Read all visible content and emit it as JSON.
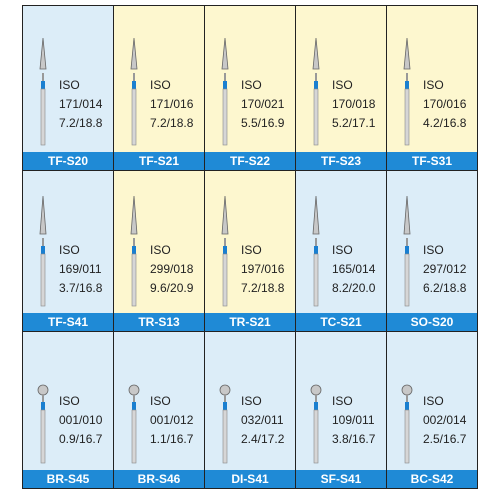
{
  "rows": [
    [
      {
        "label": "TF-S20",
        "iso": "ISO",
        "code": "171/014",
        "size": "7.2/18.8"
      },
      {
        "label": "TF-S21",
        "iso": "ISO",
        "code": "171/016",
        "size": "7.2/18.8"
      },
      {
        "label": "TF-S22",
        "iso": "ISO",
        "code": "170/021",
        "size": "5.5/16.9"
      },
      {
        "label": "TF-S23",
        "iso": "ISO",
        "code": "170/018",
        "size": "5.2/17.1"
      },
      {
        "label": "TF-S31",
        "iso": "ISO",
        "code": "170/016",
        "size": "4.2/16.8"
      }
    ],
    [
      {
        "label": "TF-S41",
        "iso": "ISO",
        "code": "169/011",
        "size": "3.7/16.8"
      },
      {
        "label": "TR-S13",
        "iso": "ISO",
        "code": "299/018",
        "size": "9.6/20.9"
      },
      {
        "label": "TR-S21",
        "iso": "ISO",
        "code": "197/016",
        "size": "7.2/18.8"
      },
      {
        "label": "TC-S21",
        "iso": "ISO",
        "code": "165/014",
        "size": "8.2/20.0"
      },
      {
        "label": "SO-S20",
        "iso": "ISO",
        "code": "297/012",
        "size": "6.2/18.8"
      }
    ],
    [
      {
        "label": "BR-S45",
        "iso": "ISO",
        "code": "001/010",
        "size": "0.9/16.7"
      },
      {
        "label": "BR-S46",
        "iso": "ISO",
        "code": "001/012",
        "size": "1.1/16.7"
      },
      {
        "label": "DI-S41",
        "iso": "ISO",
        "code": "032/011",
        "size": "2.4/17.2"
      },
      {
        "label": "SF-S41",
        "iso": "ISO",
        "code": "109/011",
        "size": "3.8/16.7"
      },
      {
        "label": "BC-S42",
        "iso": "ISO",
        "code": "002/014",
        "size": "2.5/16.7"
      }
    ]
  ]
}
